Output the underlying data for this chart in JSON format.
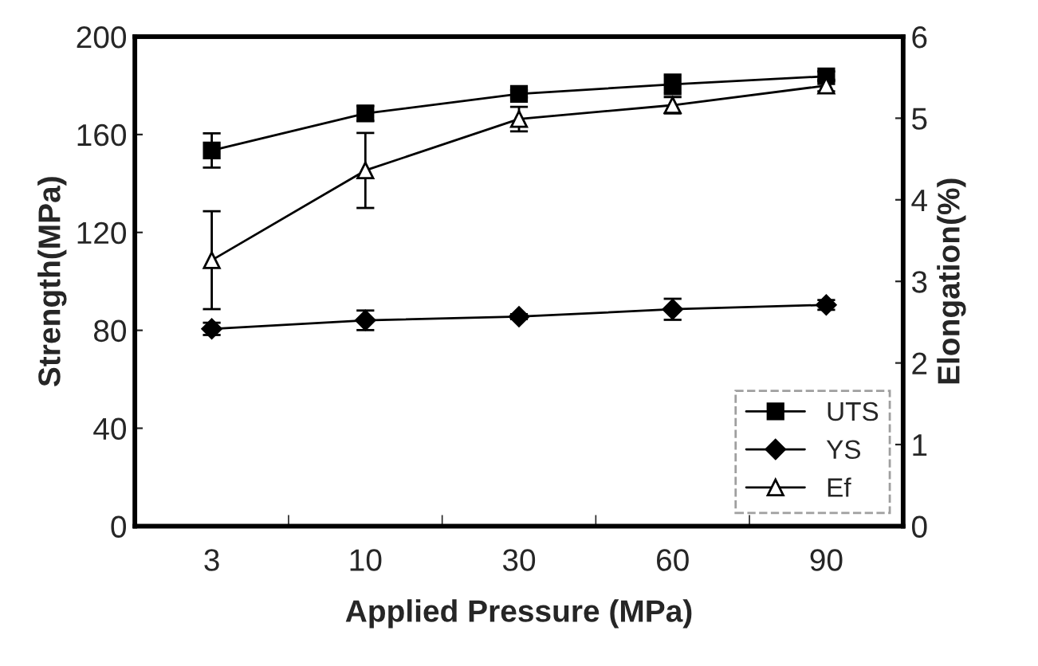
{
  "chart_data": {
    "type": "line",
    "xlabel": "Applied Pressure (MPa)",
    "ylabel": "Strength(MPa)",
    "y2label": "Elongation(%)",
    "categories": [
      "3",
      "10",
      "30",
      "60",
      "90"
    ],
    "series": [
      {
        "name": "UTS",
        "color": "#000000",
        "marker": "square",
        "values": [
          153.5,
          168.6,
          176.6,
          180.5,
          183.8
        ],
        "errors": [
          7,
          3,
          1.5,
          4,
          2
        ]
      },
      {
        "name": "YS",
        "color": "#000000",
        "marker": "diamond",
        "values": [
          80.6,
          84.1,
          85.6,
          88.6,
          90.4
        ],
        "errors": [
          2.5,
          4,
          1,
          4.3,
          2
        ]
      },
      {
        "name": "Ef",
        "color": "#000000",
        "marker": "triangle",
        "axis": "y2",
        "values": [
          3.26,
          4.36,
          4.99,
          5.16,
          5.4
        ],
        "errors": [
          0.6,
          0.46,
          0.15,
          0.1,
          0.07
        ]
      }
    ],
    "ylim": [
      0,
      200
    ],
    "yticks": [
      0,
      40,
      80,
      120,
      160,
      200
    ],
    "y2lim": [
      0,
      6
    ],
    "y2ticks": [
      0,
      1,
      2,
      3,
      4,
      5,
      6
    ],
    "grid": false,
    "legend": "bottom right",
    "line_style": "solid"
  }
}
